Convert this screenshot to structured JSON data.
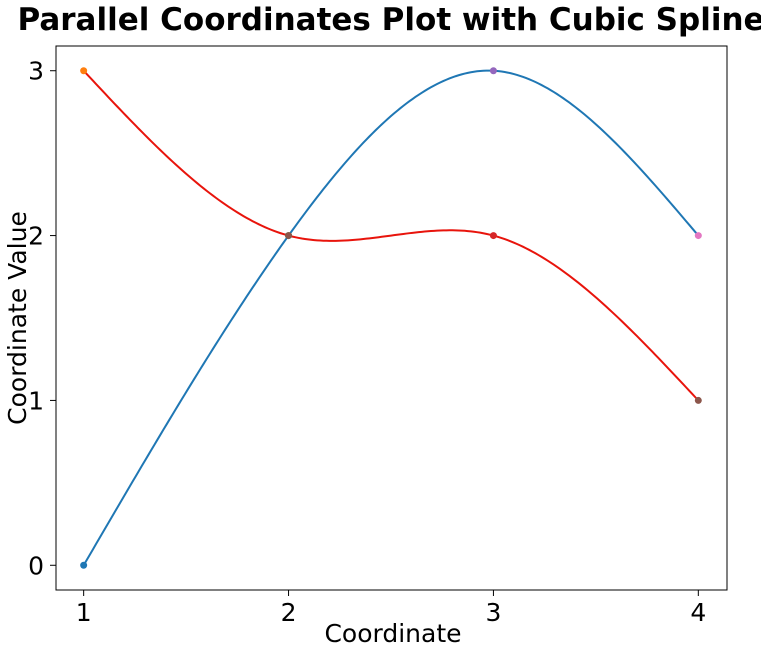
{
  "chart_data": {
    "type": "line",
    "title": "Parallel Coordinates Plot with Cubic Spline",
    "xlabel": "Coordinate",
    "ylabel": "Coordinate Value",
    "xlim": [
      0.865,
      4.14
    ],
    "ylim": [
      -0.15,
      3.15
    ],
    "xticks": [
      1,
      2,
      3,
      4
    ],
    "yticks": [
      0,
      1,
      2,
      3
    ],
    "grid": false,
    "smoothing": "cubic-spline",
    "series": [
      {
        "color": "#1f77b4",
        "x": [
          1,
          2,
          3,
          4
        ],
        "y": [
          0,
          2,
          3,
          2
        ]
      },
      {
        "color": "#e8140c",
        "x": [
          1,
          2,
          3,
          4
        ],
        "y": [
          3,
          2,
          2,
          1
        ]
      }
    ],
    "points": [
      {
        "x": 1,
        "y": 0,
        "color": "#1f77b4"
      },
      {
        "x": 1,
        "y": 3,
        "color": "#ff7f0e"
      },
      {
        "x": 2,
        "y": 2,
        "color": "#2ca02c"
      },
      {
        "x": 2,
        "y": 2,
        "color": "#8c564b"
      },
      {
        "x": 3,
        "y": 2,
        "color": "#d62728"
      },
      {
        "x": 3,
        "y": 3,
        "color": "#9467bd"
      },
      {
        "x": 4,
        "y": 1,
        "color": "#8c564b"
      },
      {
        "x": 4,
        "y": 2,
        "color": "#e377c2"
      }
    ]
  }
}
